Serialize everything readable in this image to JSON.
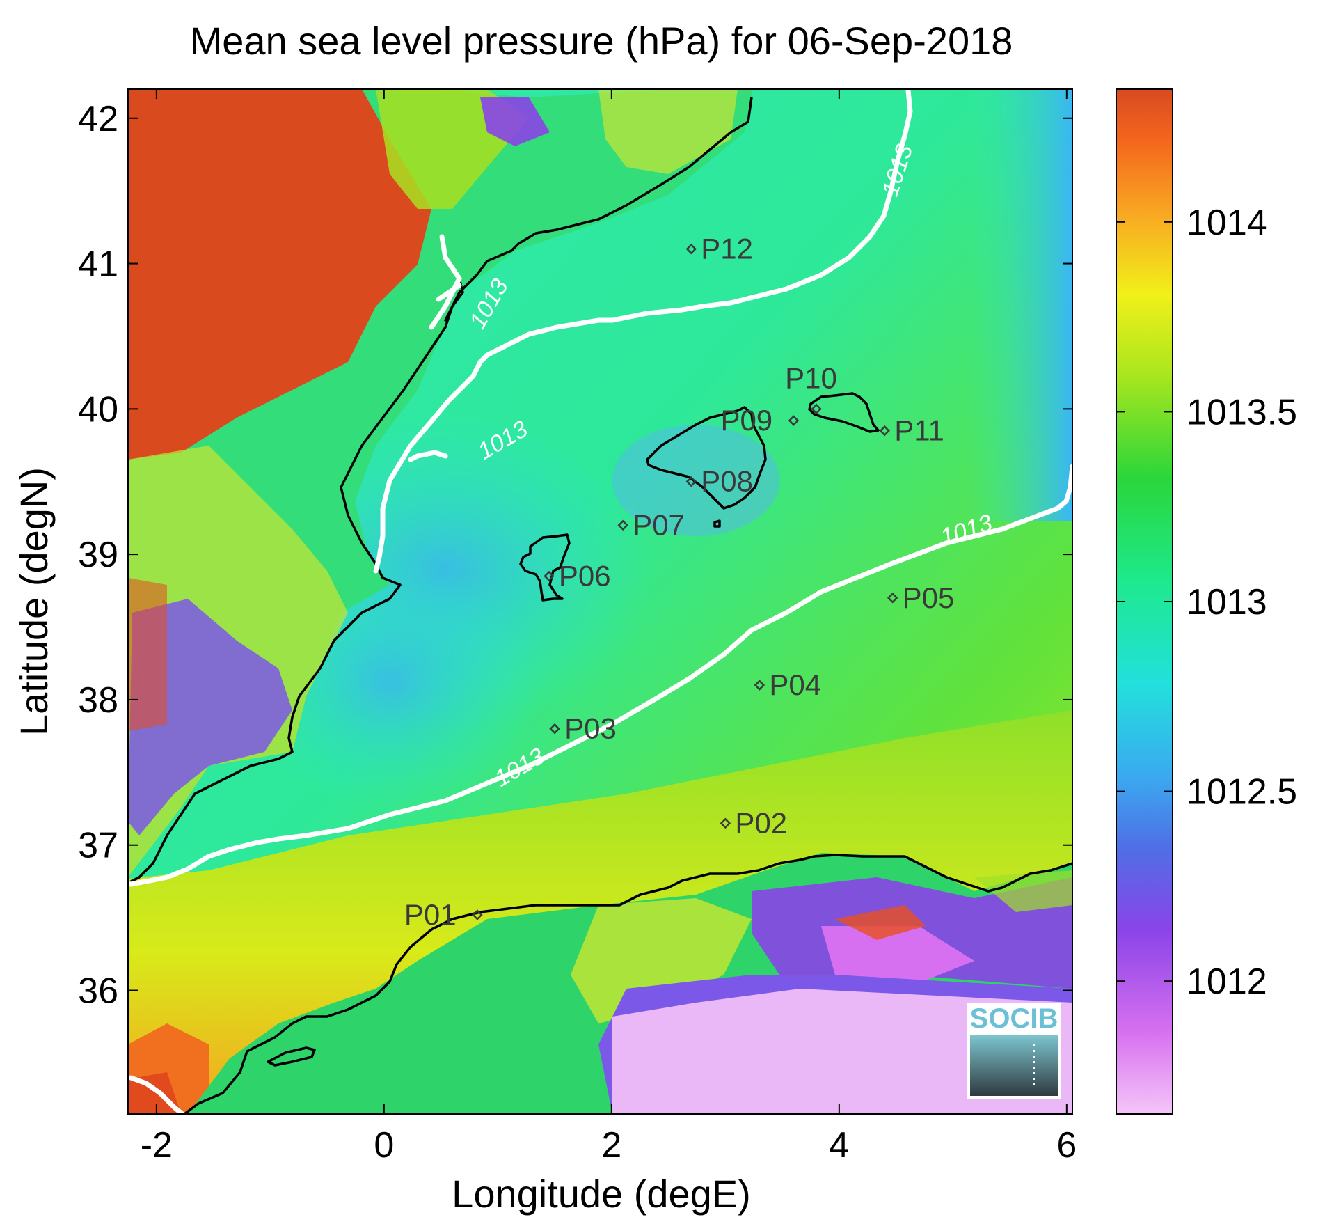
{
  "title": "Mean sea level pressure (hPa) for 06-Sep-2018",
  "xlabel": "Longitude (degE)",
  "ylabel": "Latitude (degN)",
  "x_ticks": [
    "-2",
    "0",
    "2",
    "4",
    "6"
  ],
  "y_ticks": [
    "42",
    "41",
    "40",
    "39",
    "38",
    "37",
    "36"
  ],
  "colorbar": {
    "ticks": [
      "1014",
      "1013.5",
      "1013",
      "1012.5",
      "1012"
    ],
    "range": [
      1011.65,
      1014.35
    ]
  },
  "contour_label": "1013",
  "logo_text": "SOCIB",
  "stations": [
    {
      "name": "P01",
      "lon": 0.82,
      "lat": 36.52
    },
    {
      "name": "P02",
      "lon": 3.0,
      "lat": 37.15
    },
    {
      "name": "P03",
      "lon": 1.5,
      "lat": 37.8
    },
    {
      "name": "P04",
      "lon": 3.3,
      "lat": 38.1
    },
    {
      "name": "P05",
      "lon": 4.47,
      "lat": 38.7
    },
    {
      "name": "P06",
      "lon": 1.45,
      "lat": 38.85
    },
    {
      "name": "P07",
      "lon": 2.1,
      "lat": 39.2
    },
    {
      "name": "P08",
      "lon": 2.7,
      "lat": 39.5
    },
    {
      "name": "P09",
      "lon": 3.6,
      "lat": 39.92
    },
    {
      "name": "P10",
      "lon": 3.8,
      "lat": 40.0
    },
    {
      "name": "P11",
      "lon": 4.4,
      "lat": 39.85
    },
    {
      "name": "P12",
      "lon": 2.7,
      "lat": 41.1
    }
  ],
  "colors": {
    "land_high": "#d94a1e",
    "sea_mid": "#2ee88f",
    "sea_low": "#3ad6e6",
    "south_high": "#c8e61a",
    "low_pressure": "#e8b4f4",
    "contour": "#ffffff",
    "coast": "#000000"
  }
}
